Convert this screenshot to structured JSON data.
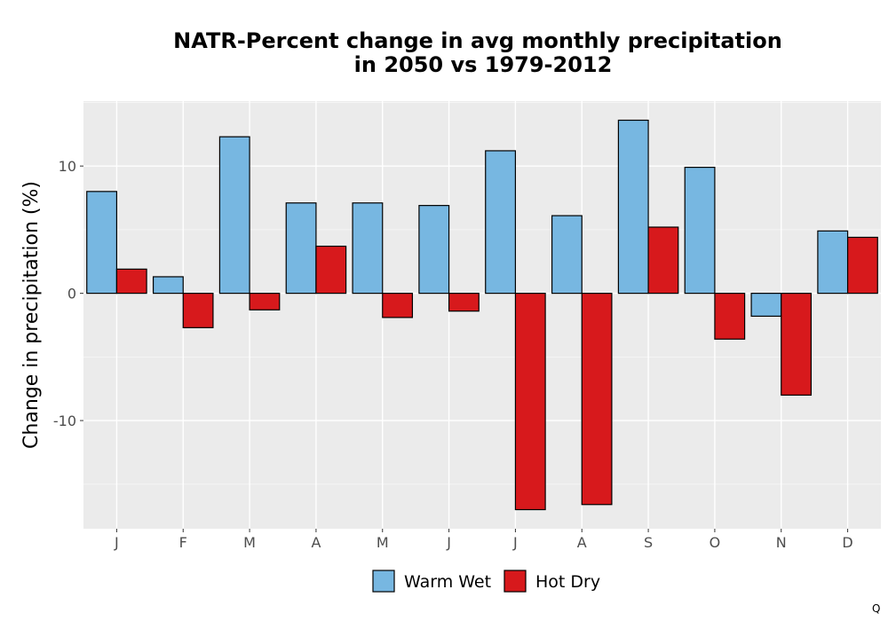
{
  "chart_data": {
    "type": "bar",
    "title_line1": "NATR-Percent change in avg monthly precipitation",
    "title_line2": "in 2050 vs 1979-2012",
    "xlabel": "",
    "ylabel": "Change in precipitation (%)",
    "categories": [
      "J",
      "F",
      "M",
      "A",
      "M",
      "J",
      "J",
      "A",
      "S",
      "O",
      "N",
      "D"
    ],
    "series": [
      {
        "name": "Warm Wet",
        "color": "#77b7e1",
        "values": [
          8.0,
          1.3,
          12.3,
          7.1,
          7.1,
          6.9,
          11.2,
          6.1,
          13.6,
          9.9,
          -1.8,
          4.9
        ]
      },
      {
        "name": "Hot Dry",
        "color": "#d7191c",
        "values": [
          1.9,
          -2.7,
          -1.3,
          3.7,
          -1.9,
          -1.4,
          -17.0,
          -16.6,
          5.2,
          -3.6,
          -8.0,
          4.4
        ]
      }
    ],
    "ylim": [
      -18.5,
      15.1
    ],
    "yticks": [
      -10,
      0,
      10
    ],
    "grid": true,
    "legend_position": "bottom"
  },
  "corner_mark": "Q"
}
